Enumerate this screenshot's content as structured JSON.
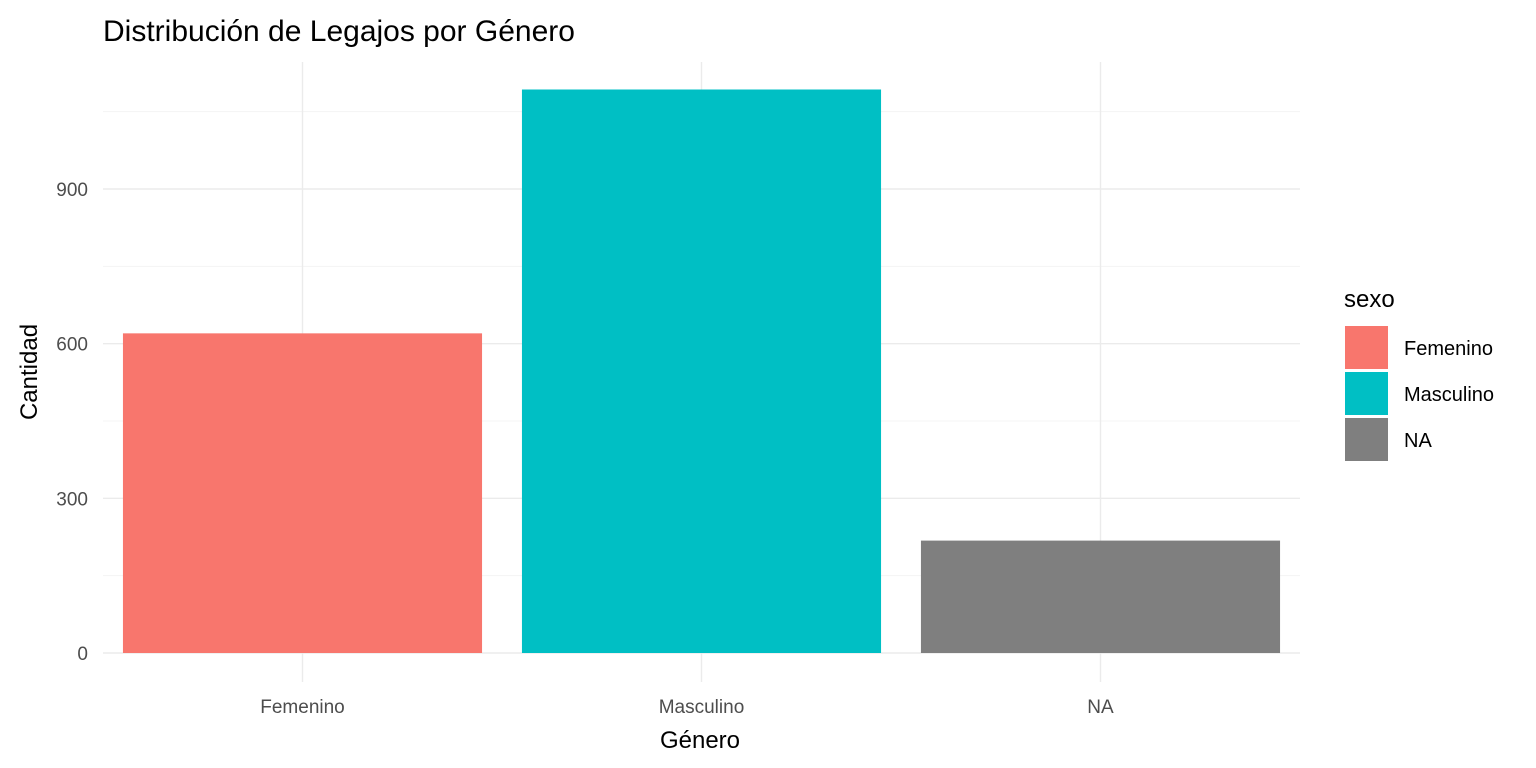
{
  "chart_data": {
    "type": "bar",
    "title": "Distribución de Legajos por Género",
    "xlabel": "Género",
    "ylabel": "Cantidad",
    "categories": [
      "Femenino",
      "Masculino",
      "NA"
    ],
    "values": [
      620,
      1093,
      218
    ],
    "colors": [
      "#F8766D",
      "#00BFC4",
      "#7F7F7F"
    ],
    "ylim": [
      0,
      1150
    ],
    "yticks": [
      0,
      300,
      600,
      900
    ],
    "ytick_labels": [
      "0",
      "300",
      "600",
      "900"
    ],
    "grid": true,
    "legend": {
      "title": "sexo",
      "position": "right",
      "entries": [
        "Femenino",
        "Masculino",
        "NA"
      ]
    }
  }
}
